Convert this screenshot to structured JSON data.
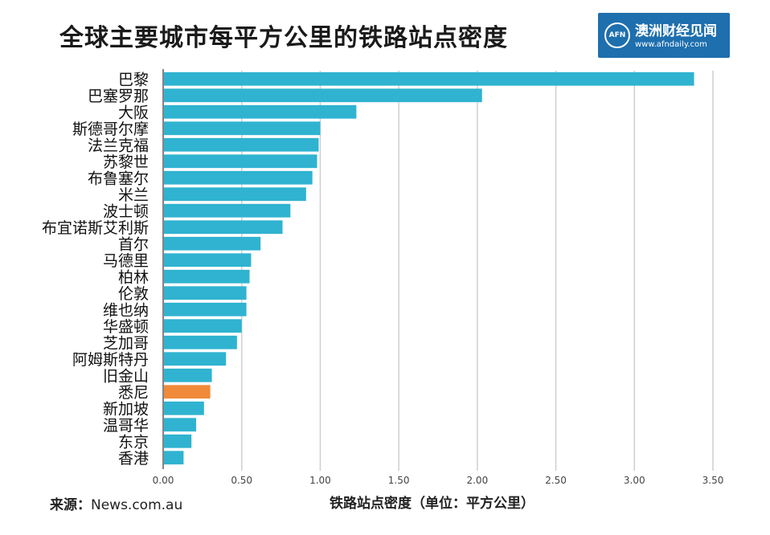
{
  "header": {
    "title": "全球主要城市每平方公里的铁路站点密度",
    "logo_mark": "AFN",
    "logo_name": "澳洲财经见闻",
    "logo_url": "www.afndaily.com"
  },
  "source": {
    "label": "来源：",
    "value": "News.com.au"
  },
  "colors": {
    "bar": "#2fb3d0",
    "highlight": "#ef8a3a",
    "grid": "#cfcfcf",
    "axis": "#333333"
  },
  "chart_data": {
    "type": "bar",
    "orientation": "horizontal",
    "title": "全球主要城市每平方公里的铁路站点密度",
    "xlabel": "铁路站点密度（单位：平方公里）",
    "ylabel": "",
    "xlim": [
      0,
      3.5
    ],
    "xticks": [
      "0.00",
      "0.50",
      "1.00",
      "1.50",
      "2.00",
      "2.50",
      "3.00",
      "3.50"
    ],
    "grid": true,
    "highlight_category": "悉尼",
    "categories": [
      "巴黎",
      "巴塞罗那",
      "大阪",
      "斯德哥尔摩",
      "法兰克福",
      "苏黎世",
      "布鲁塞尔",
      "米兰",
      "波士顿",
      "布宜诺斯艾利斯",
      "首尔",
      "马德里",
      "柏林",
      "伦敦",
      "维也纳",
      "华盛顿",
      "芝加哥",
      "阿姆斯特丹",
      "旧金山",
      "悉尼",
      "新加坡",
      "温哥华",
      "东京",
      "香港"
    ],
    "values": [
      3.38,
      2.03,
      1.23,
      1.0,
      0.99,
      0.98,
      0.95,
      0.91,
      0.81,
      0.76,
      0.62,
      0.56,
      0.55,
      0.53,
      0.53,
      0.5,
      0.47,
      0.4,
      0.31,
      0.3,
      0.26,
      0.21,
      0.18,
      0.13
    ]
  }
}
